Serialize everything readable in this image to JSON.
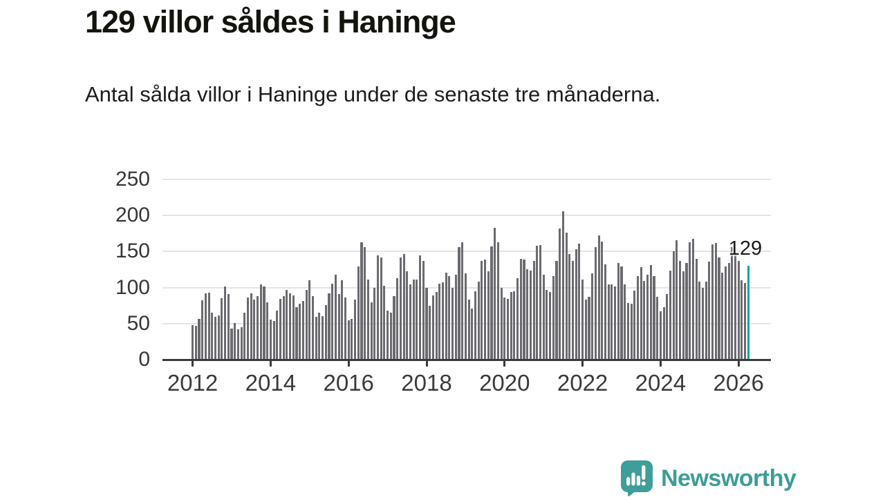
{
  "title": "129 villor såldes i Haninge",
  "subtitle": "Antal sålda villor i Haninge under de senaste tre månaderna.",
  "annotation": {
    "last_value_label": "129"
  },
  "branding": {
    "name": "Newsworthy",
    "icon": "newsworthy-chart-bubble-icon"
  },
  "colors": {
    "bar": "#6a6a6f",
    "highlight": "#0ba49e",
    "grid": "#e4e4e4",
    "axis": "#3a3a3a",
    "text": "#1a1a1a",
    "brand": "#3b9d98"
  },
  "chart_data": {
    "type": "bar",
    "title": "129 villor såldes i Haninge",
    "subtitle": "Antal sålda villor i Haninge under de senaste tre månaderna.",
    "x_start": "2012-01",
    "x_end": "2026-04",
    "x_unit": "month (rolling 3-month total)",
    "ylabel": "",
    "ylim": [
      0,
      250
    ],
    "yticks": [
      0,
      50,
      100,
      150,
      200,
      250
    ],
    "year_ticks": [
      2012,
      2014,
      2016,
      2018,
      2020,
      2022,
      2024,
      2026
    ],
    "grid": true,
    "legend": "none",
    "highlight_last": true,
    "last_value": 129,
    "series": [
      {
        "name": "Antal sålda villor i Haninge (senaste tre månaderna)",
        "values": [
          47,
          46,
          56,
          81,
          91,
          92,
          64,
          58,
          60,
          84,
          101,
          90,
          42,
          50,
          41,
          44,
          64,
          85,
          91,
          82,
          87,
          103,
          101,
          79,
          55,
          53,
          67,
          83,
          87,
          96,
          91,
          88,
          72,
          77,
          80,
          96,
          109,
          87,
          58,
          64,
          59,
          75,
          91,
          104,
          117,
          90,
          109,
          85,
          54,
          56,
          82,
          128,
          162,
          155,
          110,
          79,
          99,
          144,
          141,
          102,
          67,
          64,
          87,
          112,
          141,
          146,
          122,
          103,
          110,
          110,
          144,
          136,
          99,
          74,
          88,
          93,
          104,
          106,
          120,
          115,
          99,
          117,
          155,
          162,
          119,
          82,
          70,
          94,
          107,
          136,
          138,
          122,
          156,
          182,
          162,
          99,
          85,
          83,
          93,
          94,
          112,
          139,
          138,
          125,
          123,
          136,
          157,
          158,
          117,
          96,
          93,
          115,
          136,
          181,
          205,
          175,
          146,
          136,
          152,
          160,
          110,
          82,
          86,
          119,
          155,
          171,
          163,
          131,
          103,
          103,
          101,
          133,
          128,
          103,
          78,
          77,
          95,
          115,
          127,
          108,
          117,
          130,
          115,
          86,
          66,
          72,
          90,
          123,
          149,
          165,
          136,
          122,
          133,
          162,
          167,
          139,
          107,
          99,
          107,
          135,
          159,
          161,
          141,
          120,
          128,
          133,
          155,
          146,
          136,
          109,
          105,
          129
        ]
      }
    ]
  }
}
